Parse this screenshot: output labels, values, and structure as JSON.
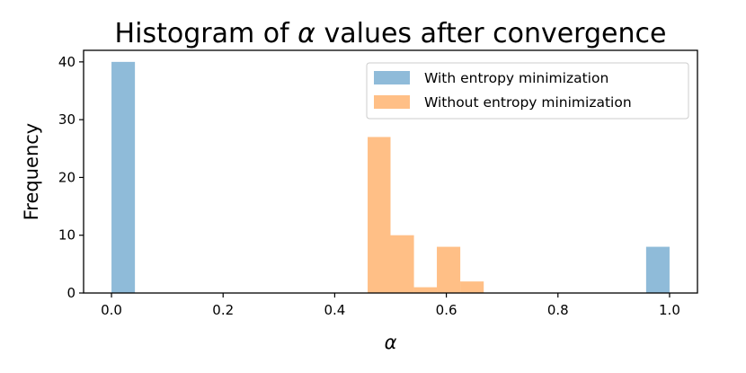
{
  "chart_data": {
    "type": "histogram",
    "title_prefix": "Histogram of ",
    "title_symbol": "α",
    "title_suffix": " values after convergence",
    "xlabel": "α",
    "ylabel": "Frequency",
    "xlim": [
      -0.05,
      1.05
    ],
    "ylim": [
      0,
      42
    ],
    "x_ticks": [
      0.0,
      0.2,
      0.4,
      0.6,
      0.8,
      1.0
    ],
    "x_tick_labels": [
      "0.0",
      "0.2",
      "0.4",
      "0.6",
      "0.8",
      "1.0"
    ],
    "y_ticks": [
      0,
      10,
      20,
      30,
      40
    ],
    "y_tick_labels": [
      "0",
      "10",
      "20",
      "30",
      "40"
    ],
    "legend_position": "top-right",
    "series": [
      {
        "name": "With entropy minimization",
        "color": "#1f77b4",
        "opacity": 0.5,
        "bins": [
          {
            "x0": 0.0,
            "x1": 0.042,
            "count": 40
          },
          {
            "x0": 0.958,
            "x1": 1.0,
            "count": 8
          }
        ]
      },
      {
        "name": "Without entropy minimization",
        "color": "#ff7f0e",
        "opacity": 0.5,
        "bins": [
          {
            "x0": 0.459,
            "x1": 0.5,
            "count": 27
          },
          {
            "x0": 0.5,
            "x1": 0.542,
            "count": 10
          },
          {
            "x0": 0.542,
            "x1": 0.583,
            "count": 1
          },
          {
            "x0": 0.583,
            "x1": 0.625,
            "count": 8
          },
          {
            "x0": 0.625,
            "x1": 0.667,
            "count": 2
          }
        ]
      }
    ]
  }
}
